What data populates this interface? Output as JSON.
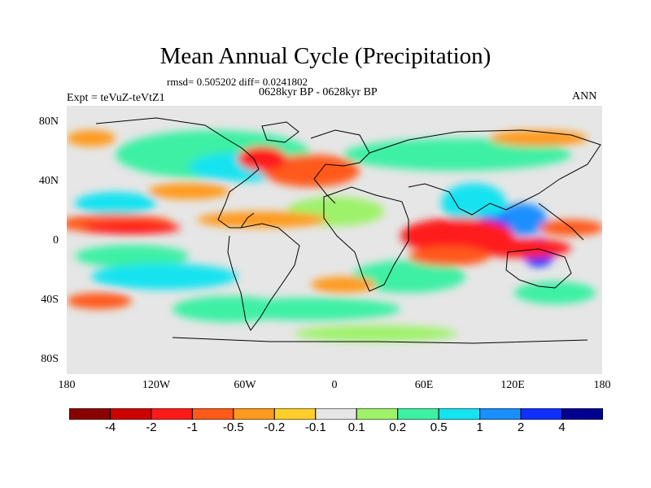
{
  "title": "Mean Annual Cycle (Precipitation)",
  "stats": "rmsd= 0.505202 diff= 0.0241802",
  "period": "0628kyr BP - 0628kyr BP",
  "experiment": "Expt = teVuZ-teVtZ1",
  "season": "ANN",
  "lat_ticks": [
    "80N",
    "40N",
    "0",
    "40S",
    "80S"
  ],
  "lon_ticks": [
    "180",
    "120W",
    "60W",
    "0",
    "60E",
    "120E",
    "180"
  ],
  "colorbar": {
    "labels": [
      "-4",
      "-2",
      "-1",
      "-0.5",
      "-0.2",
      "-0.1",
      "0.1",
      "0.2",
      "0.5",
      "1",
      "2",
      "4"
    ],
    "colors": [
      "#8a0000",
      "#cc0000",
      "#ff1a1a",
      "#ff5a1a",
      "#ff9a1f",
      "#ffce2a",
      "#e6e6e6",
      "#9ef26a",
      "#3cf0a4",
      "#15e3f0",
      "#1a8fff",
      "#1030ff",
      "#000090"
    ]
  }
}
